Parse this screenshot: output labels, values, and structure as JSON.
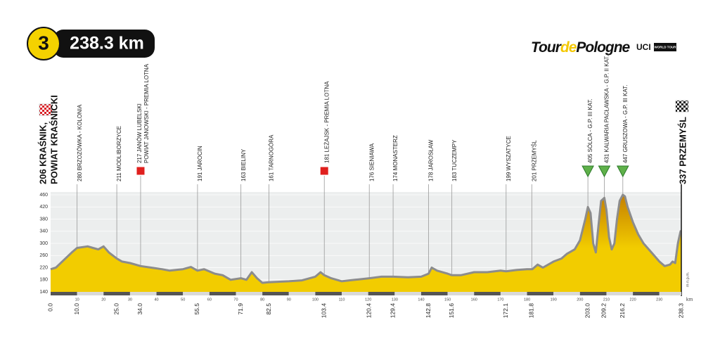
{
  "chart_data": {
    "type": "area",
    "stage": "3",
    "distance": "238.3 km",
    "logo": {
      "tour": "Tour",
      "de": "de",
      "pologne": "Pologne",
      "uci": "UCI",
      "uci_tour": "WORLD TOUR"
    },
    "x_unit": "km",
    "y_unit": "m n.p.m.",
    "color": "#f2cc00",
    "peak_color": "#c47f00",
    "outline_color": "#8c8c8c",
    "xlim": [
      0,
      238.3
    ],
    "ylim": [
      140,
      460
    ],
    "yticks": [
      140,
      180,
      220,
      260,
      300,
      340,
      380,
      420,
      460
    ],
    "xticks": [
      10,
      20,
      30,
      40,
      50,
      60,
      70,
      80,
      90,
      100,
      110,
      120,
      130,
      140,
      150,
      160,
      170,
      180,
      190,
      200,
      210,
      220,
      230
    ],
    "grid": true,
    "x": [
      0,
      2,
      5,
      8,
      10,
      14,
      16,
      18,
      20,
      22,
      25,
      27,
      30,
      34,
      38,
      42,
      45,
      50,
      53,
      55.5,
      58,
      62,
      65,
      68,
      71.9,
      74,
      76,
      78,
      80,
      82.5,
      90,
      95,
      100,
      102,
      103.4,
      106,
      110,
      115,
      120.4,
      125,
      129.4,
      135,
      140,
      142.8,
      144,
      146,
      150,
      151.6,
      155,
      160,
      165,
      170,
      172.1,
      176,
      180,
      182,
      184,
      186,
      190,
      193,
      195,
      198,
      200,
      202,
      203,
      204,
      205,
      206,
      207,
      208,
      209.2,
      210,
      211,
      212,
      213,
      214,
      215,
      216.2,
      217,
      218,
      220,
      222,
      224,
      227,
      230,
      232,
      234,
      235,
      236,
      237,
      238,
      238.3
    ],
    "values": [
      215,
      220,
      245,
      270,
      285,
      290,
      285,
      280,
      290,
      270,
      250,
      240,
      235,
      225,
      220,
      215,
      210,
      215,
      222,
      210,
      215,
      200,
      195,
      180,
      185,
      180,
      205,
      185,
      170,
      172,
      175,
      178,
      190,
      205,
      195,
      185,
      175,
      180,
      185,
      190,
      190,
      188,
      190,
      200,
      220,
      210,
      200,
      195,
      195,
      205,
      205,
      210,
      208,
      212,
      215,
      215,
      230,
      220,
      240,
      250,
      265,
      280,
      310,
      380,
      420,
      400,
      300,
      270,
      360,
      440,
      450,
      410,
      320,
      280,
      300,
      380,
      440,
      460,
      455,
      420,
      370,
      330,
      300,
      270,
      240,
      225,
      230,
      240,
      235,
      300,
      340,
      340
    ],
    "start": {
      "km": {
        "value": 0,
        "label": "0.0"
      },
      "lines": [
        "206 KRAŚNIK,",
        "POWIAT KRAŚNICKI"
      ]
    },
    "finish": {
      "km": 238.3,
      "lines": [
        "337 PRZEMYŚL"
      ]
    },
    "waypoints": [
      {
        "km": {
          "value": 10,
          "label": "10.0"
        },
        "lines": [
          "280 BRZOZÓWKA - KOLONIA"
        ],
        "marker": null
      },
      {
        "km": {
          "value": 25,
          "label": "25.0"
        },
        "lines": [
          "211 MODLIBORZYCE"
        ],
        "marker": null
      },
      {
        "km": {
          "value": 34,
          "label": "34.0"
        },
        "lines": [
          "217 JANÓW LUBELSKI",
          "POWIAT JANOWSKI - PREMIA LOTNA"
        ],
        "marker": "sprint"
      },
      {
        "km": 55.5,
        "lines": [
          "191 JAROCIN"
        ],
        "marker": null
      },
      {
        "km": 71.9,
        "lines": [
          "163 BIELINY"
        ],
        "marker": null
      },
      {
        "km": 82.5,
        "lines": [
          "161 TARNOGÓRA"
        ],
        "marker": null
      },
      {
        "km": 103.4,
        "lines": [
          "181 LEŻAJSK - PREMIA LOTNA"
        ],
        "marker": "sprint"
      },
      {
        "km": 120.4,
        "lines": [
          "176 SIENIAWA"
        ],
        "marker": null
      },
      {
        "km": 129.4,
        "lines": [
          "174 MONASTERZ"
        ],
        "marker": null
      },
      {
        "km": 142.8,
        "lines": [
          "178 JAROSŁAW"
        ],
        "marker": null
      },
      {
        "km": 151.6,
        "lines": [
          "183 TUCZEMPY"
        ],
        "marker": null
      },
      {
        "km": 172.1,
        "lines": [
          "199 WYSZATYCE"
        ],
        "marker": null
      },
      {
        "km": 181.8,
        "lines": [
          "201 PRZEMYŚL"
        ],
        "marker": null
      },
      {
        "km": {
          "value": 203,
          "label": "203.0"
        },
        "lines": [
          "405 SÓLCA - G.P. III KAT."
        ],
        "marker": "climb"
      },
      {
        "km": 209.2,
        "lines": [
          "431 KALWARIA PACŁAWSKA - G.P. II KAT."
        ],
        "marker": "climb"
      },
      {
        "km": 216.2,
        "lines": [
          "447 GRUSZOWA - G.P. III KAT."
        ],
        "marker": "climb"
      }
    ]
  }
}
